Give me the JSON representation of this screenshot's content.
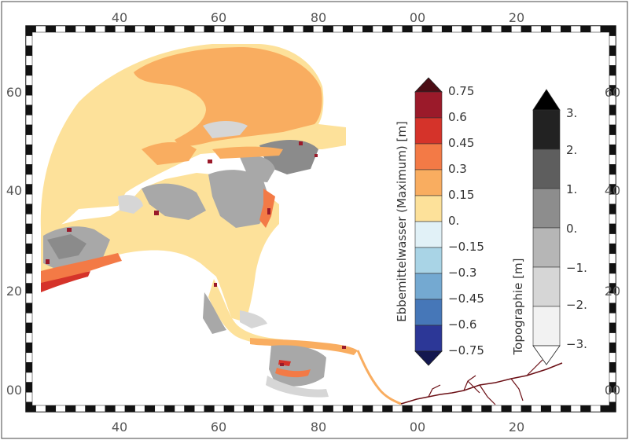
{
  "map": {
    "axis_top": [
      "40",
      "60",
      "80",
      "00",
      "20"
    ],
    "axis_bottom": [
      "40",
      "60",
      "80",
      "00",
      "20"
    ],
    "axis_left": [
      "60",
      "40",
      "20",
      "00"
    ],
    "axis_right": [
      "60",
      "40",
      "20",
      "00"
    ],
    "region_colors": {
      "deep_water": "#fde19a",
      "shallow_positive": "#f9ad60",
      "mid_positive": "#f37a46",
      "high_positive": "#d5332a",
      "max_positive": "#9b1a2a",
      "topo_light": "#d6d6d6",
      "topo_mid": "#a8a8a8",
      "topo_dark": "#8b8b8b",
      "river": "#6b0f15"
    }
  },
  "colorbar_ebb": {
    "title": "Ebbemittelwasser (Maximum) [m]",
    "labels": [
      "0.75",
      "0.6",
      "0.45",
      "0.3",
      "0.15",
      "0.",
      "−0.15",
      "−0.3",
      "−0.45",
      "−0.6",
      "−0.75"
    ],
    "colors": [
      "#9b1a2a",
      "#d5332a",
      "#f37a46",
      "#f9ad60",
      "#fde19a",
      "#e1f1f7",
      "#a9d4e6",
      "#74a9d1",
      "#4677b8",
      "#2c3797"
    ],
    "top_arrow_color": "#4b0d15",
    "bottom_arrow_color": "#13174f"
  },
  "colorbar_topo": {
    "title": "Topographie [m]",
    "labels": [
      "3.",
      "2.",
      "1.",
      "0.",
      "−1.",
      "−2.",
      "−3."
    ],
    "colors": [
      "#222222",
      "#5e5e5e",
      "#8d8d8d",
      "#b6b6b6",
      "#d6d6d6",
      "#f2f2f2"
    ],
    "top_arrow_color": "#000000",
    "bottom_arrow_color": "#ffffff"
  }
}
